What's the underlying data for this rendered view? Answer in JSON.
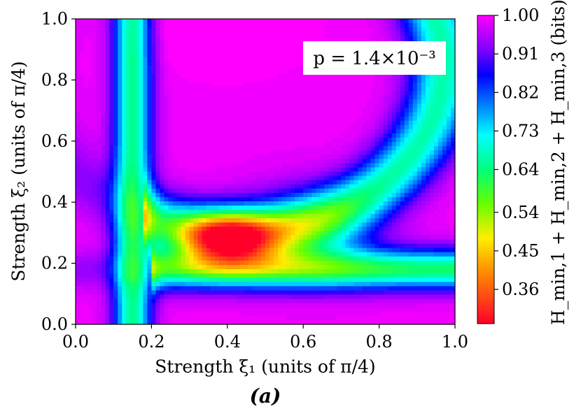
{
  "chart_data": {
    "type": "heatmap",
    "xlabel": "Strength ξ₁ (units of π/4)",
    "ylabel": "Strength ξ₂ (units of π/4)",
    "xlim": [
      0.0,
      1.0
    ],
    "ylim": [
      0.0,
      1.0
    ],
    "xticks": [
      "0.0",
      "0.2",
      "0.4",
      "0.6",
      "0.8",
      "1.0"
    ],
    "yticks": [
      "0.0",
      "0.2",
      "0.4",
      "0.6",
      "0.8",
      "1.0"
    ],
    "colorbar": {
      "label": "H_min,1 + H_min,2 + H_min,3 (bits)",
      "range": [
        0.28,
        1.0
      ],
      "ticks": [
        "1.00",
        "0.91",
        "0.82",
        "0.73",
        "0.64",
        "0.54",
        "0.45",
        "0.36"
      ],
      "tick_values": [
        1.0,
        0.91,
        0.82,
        0.73,
        0.64,
        0.54,
        0.45,
        0.36
      ],
      "colormap": "gist_rainbow"
    },
    "annotation": "p = 1.4×10⁻³",
    "panel_label": "(a)",
    "grid": false,
    "field_features": [
      {
        "feature": "minimum",
        "xi1": 0.42,
        "xi2": 0.28,
        "value": 0.29
      },
      {
        "feature": "maximum",
        "xi1": 0.4,
        "xi2": 1.0,
        "value": 1.0
      },
      {
        "feature": "maximum",
        "xi1": 1.0,
        "xi2": 0.4,
        "value": 0.98
      },
      {
        "feature": "maximum",
        "xi1": 0.4,
        "xi2": 0.0,
        "value": 0.98
      },
      {
        "feature": "valley_vertical",
        "xi1": 0.15,
        "value": 0.66
      },
      {
        "feature": "valley_horizontal",
        "xi2": 0.18,
        "value": 0.62
      }
    ]
  }
}
